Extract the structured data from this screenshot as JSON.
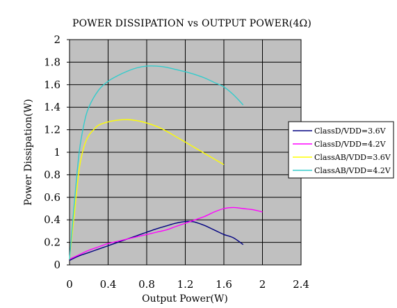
{
  "chart_data": {
    "type": "line",
    "title": "POWER DISSIPATION vs OUTPUT POWER(4Ω)",
    "xlabel": "Output Power(W)",
    "ylabel": "Power Dissipation(W)",
    "xlim": [
      0,
      2.4
    ],
    "ylim": [
      0,
      2
    ],
    "x_ticks": [
      "0",
      "0.4",
      "0.8",
      "1.2",
      "1.6",
      "2",
      "2.4"
    ],
    "y_ticks": [
      "0",
      "0.2",
      "0.4",
      "0.6",
      "0.8",
      "1",
      "1.2",
      "1.4",
      "1.6",
      "1.8",
      "2"
    ],
    "grid": true,
    "legend_position": "right",
    "plot_background": "#c0c0c0",
    "series": [
      {
        "name": "ClassD/VDD=3.6V",
        "color": "#000080",
        "x": [
          0.0,
          0.1,
          0.2,
          0.3,
          0.4,
          0.5,
          0.6,
          0.7,
          0.8,
          0.9,
          1.0,
          1.1,
          1.2,
          1.25,
          1.3,
          1.4,
          1.5,
          1.6,
          1.7,
          1.8
        ],
        "y": [
          0.04,
          0.08,
          0.11,
          0.14,
          0.17,
          0.2,
          0.23,
          0.26,
          0.29,
          0.32,
          0.345,
          0.37,
          0.385,
          0.385,
          0.38,
          0.35,
          0.31,
          0.27,
          0.24,
          0.18
        ]
      },
      {
        "name": "ClassD/VDD=4.2V",
        "color": "#ff00ff",
        "x": [
          0.0,
          0.1,
          0.2,
          0.3,
          0.4,
          0.5,
          0.6,
          0.7,
          0.8,
          0.9,
          1.0,
          1.1,
          1.2,
          1.3,
          1.4,
          1.5,
          1.6,
          1.7,
          1.8,
          1.9,
          2.0
        ],
        "y": [
          0.05,
          0.09,
          0.13,
          0.16,
          0.19,
          0.21,
          0.23,
          0.25,
          0.27,
          0.29,
          0.31,
          0.34,
          0.37,
          0.4,
          0.43,
          0.47,
          0.5,
          0.51,
          0.5,
          0.49,
          0.47
        ]
      },
      {
        "name": "ClassAB/VDD=3.6V",
        "color": "#ffff00",
        "x": [
          0.0,
          0.05,
          0.1,
          0.15,
          0.2,
          0.25,
          0.3,
          0.4,
          0.5,
          0.6,
          0.7,
          0.8,
          0.9,
          1.0,
          1.1,
          1.2,
          1.3,
          1.4,
          1.5,
          1.6
        ],
        "y": [
          0.05,
          0.45,
          0.85,
          1.05,
          1.15,
          1.2,
          1.24,
          1.27,
          1.285,
          1.29,
          1.28,
          1.26,
          1.23,
          1.19,
          1.14,
          1.09,
          1.04,
          0.99,
          0.94,
          0.89
        ]
      },
      {
        "name": "ClassAB/VDD=4.2V",
        "color": "#33cccc",
        "x": [
          0.0,
          0.05,
          0.1,
          0.15,
          0.2,
          0.3,
          0.4,
          0.5,
          0.6,
          0.7,
          0.8,
          0.9,
          1.0,
          1.1,
          1.2,
          1.3,
          1.4,
          1.5,
          1.6,
          1.7,
          1.8
        ],
        "y": [
          0.05,
          0.55,
          1.0,
          1.25,
          1.4,
          1.55,
          1.63,
          1.68,
          1.72,
          1.75,
          1.765,
          1.765,
          1.755,
          1.735,
          1.715,
          1.69,
          1.66,
          1.62,
          1.58,
          1.51,
          1.42
        ]
      }
    ]
  }
}
